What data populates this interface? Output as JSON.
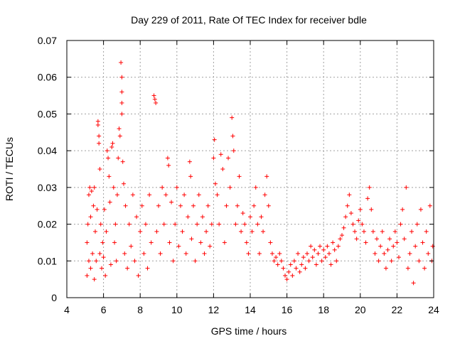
{
  "chart_data": {
    "type": "scatter",
    "title": "Day 229 of 2011, Rate Of TEC Index for receiver bdle",
    "xlabel": "GPS time / hours",
    "ylabel": "ROTI / TECUs",
    "xlim": [
      4,
      24
    ],
    "ylim": [
      0,
      0.07
    ],
    "x_ticks": [
      4,
      6,
      8,
      10,
      12,
      14,
      16,
      18,
      20,
      22,
      24
    ],
    "y_ticks": [
      0,
      0.01,
      0.02,
      0.03,
      0.04,
      0.05,
      0.06,
      0.07
    ],
    "x_tick_labels": [
      "4",
      "6",
      "8",
      "10",
      "12",
      "14",
      "16",
      "18",
      "20",
      "22",
      "24"
    ],
    "y_tick_labels": [
      "0",
      "0.01",
      "0.02",
      "0.03",
      "0.04",
      "0.05",
      "0.06",
      "0.07"
    ],
    "grid": true,
    "marker": "plus",
    "color": "#ff0000",
    "series": [
      {
        "name": "ROTI",
        "points": [
          [
            5.1,
            0.006
          ],
          [
            5.1,
            0.015
          ],
          [
            5.15,
            0.02
          ],
          [
            5.2,
            0.028
          ],
          [
            5.2,
            0.01
          ],
          [
            5.25,
            0.03
          ],
          [
            5.3,
            0.008
          ],
          [
            5.3,
            0.022
          ],
          [
            5.35,
            0.029
          ],
          [
            5.4,
            0.012
          ],
          [
            5.45,
            0.025
          ],
          [
            5.5,
            0.03
          ],
          [
            5.5,
            0.005
          ],
          [
            5.55,
            0.018
          ],
          [
            5.6,
            0.01
          ],
          [
            5.65,
            0.024
          ],
          [
            5.7,
            0.048
          ],
          [
            5.7,
            0.047
          ],
          [
            5.75,
            0.044
          ],
          [
            5.75,
            0.042
          ],
          [
            5.8,
            0.035
          ],
          [
            5.8,
            0.012
          ],
          [
            5.85,
            0.02
          ],
          [
            5.9,
            0.008
          ],
          [
            5.95,
            0.015
          ],
          [
            6.0,
            0.011
          ],
          [
            6.05,
            0.024
          ],
          [
            6.1,
            0.006
          ],
          [
            6.15,
            0.018
          ],
          [
            6.2,
            0.04
          ],
          [
            6.25,
            0.038
          ],
          [
            6.3,
            0.033
          ],
          [
            6.35,
            0.026
          ],
          [
            6.4,
            0.009
          ],
          [
            6.45,
            0.041
          ],
          [
            6.5,
            0.042
          ],
          [
            6.55,
            0.03
          ],
          [
            6.6,
            0.015
          ],
          [
            6.65,
            0.02
          ],
          [
            6.7,
            0.01
          ],
          [
            6.75,
            0.028
          ],
          [
            6.8,
            0.038
          ],
          [
            6.85,
            0.046
          ],
          [
            6.9,
            0.044
          ],
          [
            6.95,
            0.064
          ],
          [
            7.0,
            0.06
          ],
          [
            7.0,
            0.056
          ],
          [
            7.0,
            0.053
          ],
          [
            7.0,
            0.05
          ],
          [
            7.05,
            0.037
          ],
          [
            7.1,
            0.031
          ],
          [
            7.15,
            0.012
          ],
          [
            7.2,
            0.025
          ],
          [
            7.3,
            0.008
          ],
          [
            7.4,
            0.02
          ],
          [
            7.5,
            0.014
          ],
          [
            7.6,
            0.028
          ],
          [
            7.7,
            0.01
          ],
          [
            7.8,
            0.022
          ],
          [
            7.9,
            0.006
          ],
          [
            8.0,
            0.018
          ],
          [
            8.1,
            0.025
          ],
          [
            8.2,
            0.012
          ],
          [
            8.3,
            0.02
          ],
          [
            8.4,
            0.008
          ],
          [
            8.5,
            0.028
          ],
          [
            8.6,
            0.015
          ],
          [
            8.75,
            0.055
          ],
          [
            8.8,
            0.054
          ],
          [
            8.85,
            0.053
          ],
          [
            8.9,
            0.018
          ],
          [
            9.0,
            0.025
          ],
          [
            9.1,
            0.012
          ],
          [
            9.2,
            0.03
          ],
          [
            9.3,
            0.02
          ],
          [
            9.4,
            0.028
          ],
          [
            9.5,
            0.038
          ],
          [
            9.55,
            0.036
          ],
          [
            9.6,
            0.015
          ],
          [
            9.7,
            0.026
          ],
          [
            9.8,
            0.01
          ],
          [
            9.9,
            0.02
          ],
          [
            10.0,
            0.03
          ],
          [
            10.1,
            0.014
          ],
          [
            10.2,
            0.025
          ],
          [
            10.3,
            0.018
          ],
          [
            10.4,
            0.028
          ],
          [
            10.5,
            0.012
          ],
          [
            10.6,
            0.022
          ],
          [
            10.7,
            0.037
          ],
          [
            10.75,
            0.033
          ],
          [
            10.8,
            0.016
          ],
          [
            10.9,
            0.025
          ],
          [
            11.0,
            0.01
          ],
          [
            11.1,
            0.02
          ],
          [
            11.2,
            0.028
          ],
          [
            11.3,
            0.015
          ],
          [
            11.4,
            0.022
          ],
          [
            11.5,
            0.012
          ],
          [
            11.6,
            0.018
          ],
          [
            11.7,
            0.025
          ],
          [
            11.8,
            0.014
          ],
          [
            11.9,
            0.02
          ],
          [
            12.0,
            0.038
          ],
          [
            12.05,
            0.043
          ],
          [
            12.1,
            0.031
          ],
          [
            12.2,
            0.028
          ],
          [
            12.3,
            0.02
          ],
          [
            12.4,
            0.039
          ],
          [
            12.5,
            0.035
          ],
          [
            12.6,
            0.015
          ],
          [
            12.7,
            0.025
          ],
          [
            12.8,
            0.038
          ],
          [
            12.9,
            0.03
          ],
          [
            13.0,
            0.049
          ],
          [
            13.05,
            0.044
          ],
          [
            13.1,
            0.04
          ],
          [
            13.2,
            0.02
          ],
          [
            13.3,
            0.025
          ],
          [
            13.4,
            0.033
          ],
          [
            13.5,
            0.018
          ],
          [
            13.6,
            0.023
          ],
          [
            13.7,
            0.02
          ],
          [
            13.8,
            0.015
          ],
          [
            13.9,
            0.012
          ],
          [
            14.0,
            0.022
          ],
          [
            14.1,
            0.018
          ],
          [
            14.2,
            0.025
          ],
          [
            14.3,
            0.03
          ],
          [
            14.4,
            0.02
          ],
          [
            14.5,
            0.012
          ],
          [
            14.6,
            0.022
          ],
          [
            14.7,
            0.018
          ],
          [
            14.8,
            0.028
          ],
          [
            14.9,
            0.033
          ],
          [
            15.0,
            0.025
          ],
          [
            15.1,
            0.015
          ],
          [
            15.2,
            0.012
          ],
          [
            15.3,
            0.01
          ],
          [
            15.4,
            0.011
          ],
          [
            15.5,
            0.009
          ],
          [
            15.6,
            0.012
          ],
          [
            15.7,
            0.01
          ],
          [
            15.8,
            0.008
          ],
          [
            15.9,
            0.006
          ],
          [
            16.0,
            0.005
          ],
          [
            16.1,
            0.007
          ],
          [
            16.2,
            0.009
          ],
          [
            16.3,
            0.006
          ],
          [
            16.4,
            0.01
          ],
          [
            16.5,
            0.008
          ],
          [
            16.6,
            0.012
          ],
          [
            16.7,
            0.007
          ],
          [
            16.8,
            0.009
          ],
          [
            16.9,
            0.011
          ],
          [
            17.0,
            0.008
          ],
          [
            17.1,
            0.012
          ],
          [
            17.2,
            0.01
          ],
          [
            17.3,
            0.014
          ],
          [
            17.4,
            0.011
          ],
          [
            17.5,
            0.013
          ],
          [
            17.6,
            0.009
          ],
          [
            17.7,
            0.012
          ],
          [
            17.8,
            0.014
          ],
          [
            17.9,
            0.01
          ],
          [
            18.0,
            0.013
          ],
          [
            18.1,
            0.011
          ],
          [
            18.2,
            0.014
          ],
          [
            18.3,
            0.012
          ],
          [
            18.4,
            0.009
          ],
          [
            18.5,
            0.015
          ],
          [
            18.6,
            0.013
          ],
          [
            18.7,
            0.01
          ],
          [
            18.8,
            0.014
          ],
          [
            18.9,
            0.016
          ],
          [
            19.0,
            0.017
          ],
          [
            19.1,
            0.019
          ],
          [
            19.2,
            0.022
          ],
          [
            19.3,
            0.025
          ],
          [
            19.4,
            0.028
          ],
          [
            19.5,
            0.023
          ],
          [
            19.6,
            0.02
          ],
          [
            19.7,
            0.018
          ],
          [
            19.8,
            0.016
          ],
          [
            19.9,
            0.021
          ],
          [
            20.0,
            0.024
          ],
          [
            20.1,
            0.02
          ],
          [
            20.2,
            0.018
          ],
          [
            20.3,
            0.015
          ],
          [
            20.4,
            0.027
          ],
          [
            20.5,
            0.03
          ],
          [
            20.6,
            0.024
          ],
          [
            20.7,
            0.018
          ],
          [
            20.8,
            0.012
          ],
          [
            20.9,
            0.016
          ],
          [
            21.0,
            0.01
          ],
          [
            21.1,
            0.014
          ],
          [
            21.2,
            0.018
          ],
          [
            21.3,
            0.012
          ],
          [
            21.4,
            0.008
          ],
          [
            21.5,
            0.013
          ],
          [
            21.6,
            0.016
          ],
          [
            21.7,
            0.01
          ],
          [
            21.8,
            0.014
          ],
          [
            21.9,
            0.018
          ],
          [
            22.0,
            0.015
          ],
          [
            22.1,
            0.011
          ],
          [
            22.2,
            0.02
          ],
          [
            22.3,
            0.024
          ],
          [
            22.4,
            0.016
          ],
          [
            22.5,
            0.03
          ],
          [
            22.6,
            0.008
          ],
          [
            22.7,
            0.012
          ],
          [
            22.8,
            0.018
          ],
          [
            22.9,
            0.004
          ],
          [
            23.0,
            0.014
          ],
          [
            23.1,
            0.02
          ],
          [
            23.2,
            0.01
          ],
          [
            23.3,
            0.024
          ],
          [
            23.4,
            0.015
          ],
          [
            23.5,
            0.008
          ],
          [
            23.6,
            0.018
          ],
          [
            23.7,
            0.012
          ],
          [
            23.8,
            0.025
          ],
          [
            23.9,
            0.01
          ],
          [
            23.95,
            0.014
          ]
        ]
      }
    ]
  }
}
